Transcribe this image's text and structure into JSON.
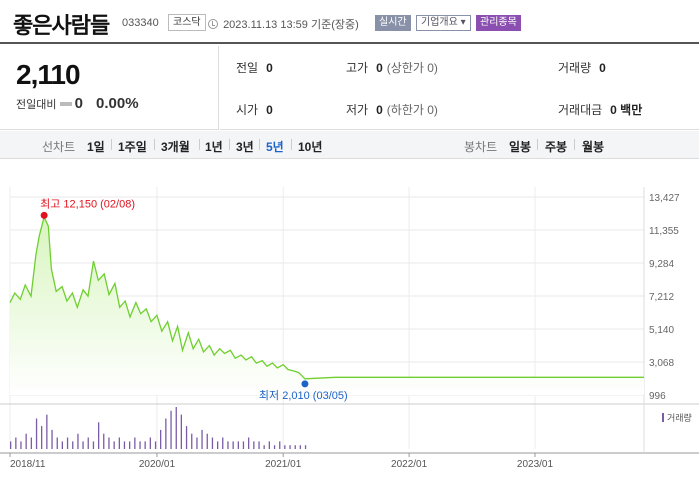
{
  "header": {
    "name": "좋은사람들",
    "code": "033340",
    "market": "코스닥",
    "datetime": "2023.11.13 13:59",
    "basis": "기준(장중)",
    "live_label": "실시간",
    "company_label": "기업개요 ▾",
    "managed_label": "관리종목"
  },
  "quote": {
    "price": "2,110",
    "change_label": "전일대비",
    "change_value": "0",
    "change_pct": "0.00%"
  },
  "stats": {
    "prev_close": {
      "label": "전일",
      "value": "0"
    },
    "high": {
      "label": "고가",
      "value": "0",
      "sub": "(상한가 0)"
    },
    "volume": {
      "label": "거래량",
      "value": "0"
    },
    "open": {
      "label": "시가",
      "value": "0"
    },
    "low": {
      "label": "저가",
      "value": "0",
      "sub": "(하한가 0)"
    },
    "amount": {
      "label": "거래대금",
      "value": "0 백만"
    }
  },
  "period_tabs": {
    "caption": "선차트",
    "items": [
      "1일",
      "1주일",
      "3개월",
      "1년",
      "3년",
      "5년",
      "10년"
    ],
    "active": "5년"
  },
  "candle_tabs": {
    "caption": "봉차트",
    "items": [
      "일봉",
      "주봉",
      "월봉"
    ]
  },
  "chart_data": {
    "type": "area",
    "title": "",
    "xlabel": "",
    "ylabel": "",
    "x_ticks": [
      "2018/11",
      "2020/01",
      "2021/01",
      "2022/01",
      "2023/01"
    ],
    "y_ticks": [
      13427,
      11355,
      9284,
      7212,
      5140,
      3068,
      996
    ],
    "ylim": [
      996,
      13427
    ],
    "xlim": [
      "2018-11-01",
      "2023-11-13"
    ],
    "colors": {
      "line": "#6fcf2f",
      "area_top": "#d8f5bf",
      "high": "#e0141e",
      "low": "#1d63c8",
      "volume": "#7a5ca8"
    },
    "annotations": {
      "high": {
        "label": "최고",
        "value": "12,150",
        "date": "(02/08)"
      },
      "low": {
        "label": "최저",
        "value": "2,010",
        "date": "(03/05)"
      }
    },
    "volume_label": "거래량",
    "series": [
      {
        "x": [
          "2018-11-01",
          "2018-11-15",
          "2018-12-01",
          "2018-12-15",
          "2019-01-01",
          "2019-01-15",
          "2019-01-25",
          "2019-02-08",
          "2019-02-20",
          "2019-03-01",
          "2019-03-15",
          "2019-04-01",
          "2019-04-15",
          "2019-05-01",
          "2019-05-15",
          "2019-06-01",
          "2019-06-15",
          "2019-07-01",
          "2019-07-15",
          "2019-08-01",
          "2019-08-15",
          "2019-09-01",
          "2019-09-15",
          "2019-10-01",
          "2019-10-15",
          "2019-11-01",
          "2019-11-15",
          "2019-12-01",
          "2019-12-15",
          "2020-01-01",
          "2020-01-15",
          "2020-02-01",
          "2020-02-15",
          "2020-03-01",
          "2020-03-15",
          "2020-04-01",
          "2020-04-15",
          "2020-05-01",
          "2020-05-15",
          "2020-06-01",
          "2020-06-15",
          "2020-07-01",
          "2020-07-15",
          "2020-08-01",
          "2020-08-15",
          "2020-09-01",
          "2020-09-15",
          "2020-10-01",
          "2020-10-15",
          "2020-11-01",
          "2020-11-15",
          "2020-12-01",
          "2020-12-15",
          "2021-01-01",
          "2021-01-15",
          "2021-02-01",
          "2021-02-15",
          "2021-03-05",
          "2021-06-01",
          "2022-01-01",
          "2023-01-01",
          "2023-11-13"
        ],
        "y": [
          6800,
          7400,
          7000,
          7900,
          7200,
          9800,
          11000,
          12150,
          11600,
          8900,
          7500,
          7800,
          6900,
          7400,
          6500,
          7600,
          7200,
          9400,
          8200,
          8600,
          7300,
          8000,
          6500,
          6900,
          5900,
          6800,
          6100,
          6400,
          5600,
          6000,
          5000,
          5600,
          4400,
          5300,
          3800,
          4900,
          3900,
          4500,
          3700,
          4100,
          3500,
          3900,
          3600,
          3800,
          3300,
          3500,
          3200,
          3400,
          3000,
          3150,
          2800,
          3000,
          2700,
          2900,
          2600,
          2500,
          2400,
          2010,
          2110,
          2110,
          2110,
          2110
        ]
      }
    ],
    "volume": [
      2,
      3,
      2,
      4,
      3,
      8,
      6,
      9,
      5,
      3,
      2,
      3,
      2,
      4,
      2,
      3,
      2,
      7,
      4,
      3,
      2,
      3,
      2,
      2,
      3,
      2,
      2,
      3,
      2,
      5,
      8,
      10,
      11,
      9,
      6,
      4,
      3,
      5,
      4,
      3,
      2,
      3,
      2,
      2,
      2,
      2,
      3,
      2,
      2,
      1,
      2,
      1,
      2,
      1,
      1,
      1,
      1,
      1
    ]
  }
}
